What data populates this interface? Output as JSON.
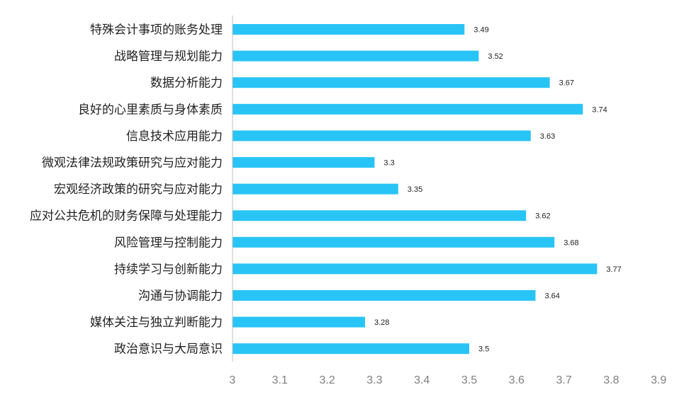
{
  "chart_data": {
    "type": "bar",
    "orientation": "horizontal",
    "categories": [
      "特殊会计事项的账务处理",
      "战略管理与规划能力",
      "数据分析能力",
      "良好的心里素质与身体素质",
      "信息技术应用能力",
      "微观法律法规政策研究与应对能力",
      "宏观经济政策的研究与应对能力",
      "应对公共危机的财务保障与处理能力",
      "风险管理与控制能力",
      "持续学习与创新能力",
      "沟通与协调能力",
      "媒体关注与独立判断能力",
      "政治意识与大局意识"
    ],
    "values": [
      3.49,
      3.52,
      3.67,
      3.74,
      3.63,
      3.3,
      3.35,
      3.62,
      3.68,
      3.77,
      3.64,
      3.28,
      3.5
    ],
    "value_labels": [
      "3.49",
      "3.52",
      "3.67",
      "3.74",
      "3.63",
      "3.3",
      "3.35",
      "3.62",
      "3.68",
      "3.77",
      "3.64",
      "3.28",
      "3.5"
    ],
    "xlim": [
      3,
      3.9
    ],
    "x_ticks": [
      "3",
      "3.1",
      "3.2",
      "3.3",
      "3.4",
      "3.5",
      "3.6",
      "3.7",
      "3.8",
      "3.9"
    ],
    "x_tick_values": [
      3,
      3.1,
      3.2,
      3.3,
      3.4,
      3.5,
      3.6,
      3.7,
      3.8,
      3.9
    ],
    "grid": false,
    "legend": "none",
    "bar_color": "#29C4F6",
    "axis_color": "#BFBFBF",
    "title": "",
    "xlabel": "",
    "ylabel": ""
  }
}
